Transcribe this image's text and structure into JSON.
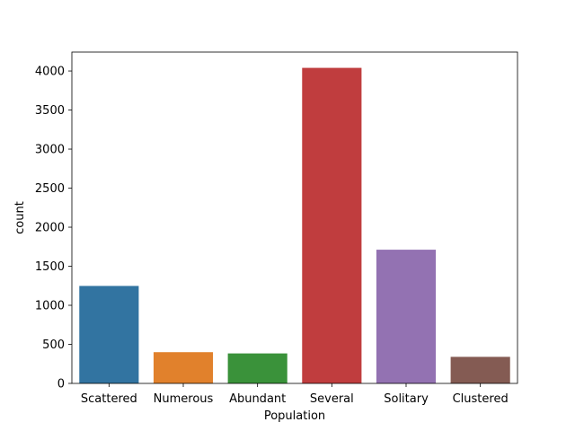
{
  "chart_data": {
    "type": "bar",
    "title": "",
    "xlabel": "Population",
    "ylabel": "count",
    "categories": [
      "Scattered",
      "Numerous",
      "Abundant",
      "Several",
      "Solitary",
      "Clustered"
    ],
    "values": [
      1248,
      400,
      384,
      4040,
      1712,
      340
    ],
    "colors": [
      "#3274a1",
      "#e1812c",
      "#3a923a",
      "#c03d3e",
      "#9372b2",
      "#845b53"
    ],
    "yticks": [
      0,
      500,
      1000,
      1500,
      2000,
      2500,
      3000,
      3500,
      4000
    ],
    "ylim": [
      0,
      4242
    ],
    "grid": false,
    "legend": "none"
  }
}
